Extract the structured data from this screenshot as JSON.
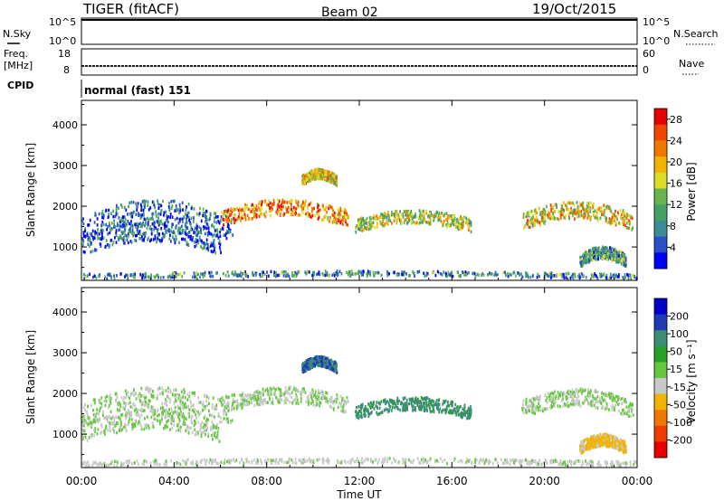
{
  "header": {
    "title": "TIGER (fitACF)",
    "beam": "Beam 02",
    "date": "19/Oct/2015"
  },
  "sky_panel": {
    "left_label": "N.Sky",
    "right_label": "N.Search",
    "left_ticks": [
      "10^5",
      "10^0"
    ],
    "right_ticks": [
      "10^5",
      "10^0"
    ]
  },
  "freq_panel": {
    "left_label_1": "Freq.",
    "left_label_2": "[MHz]",
    "right_label": "Nave",
    "left_ticks": [
      "18",
      "8"
    ],
    "right_ticks": [
      "60",
      "0"
    ]
  },
  "cpid_panel": {
    "label": "CPID",
    "text": "normal (fast) 151"
  },
  "time_axis": {
    "label": "Time UT",
    "ticks": [
      "00:00",
      "04:00",
      "08:00",
      "12:00",
      "16:00",
      "20:00",
      "00:00"
    ]
  },
  "colors": {
    "power": [
      "#0000ff",
      "#2850c8",
      "#3c8c96",
      "#46a064",
      "#64b450",
      "#dcdc28",
      "#f0b400",
      "#f07800",
      "#f04600",
      "#e60000"
    ],
    "velocity": [
      "#e60000",
      "#f03c00",
      "#f07800",
      "#f0b400",
      "#c8c8c8",
      "#64c83c",
      "#28a028",
      "#3c8c78",
      "#1e3cb4",
      "#0000c8"
    ]
  },
  "chart_data": [
    {
      "type": "heatmap",
      "ylabel": "Slant Range [km]",
      "xlabel": "Time UT",
      "x_range_hours": [
        0,
        24
      ],
      "ylim": [
        180,
        4600
      ],
      "yticks": [
        1000,
        2000,
        3000,
        4000
      ],
      "colorbar": {
        "label": "Power [dB]",
        "ticks": [
          "4",
          "8",
          "12",
          "16",
          "20",
          "24",
          "28"
        ],
        "range": [
          0,
          30
        ]
      },
      "echo_regions": [
        {
          "name": "morning-band-upper",
          "t": [
            0.0,
            6.5
          ],
          "r": [
            1150,
            2150
          ],
          "level": 6
        },
        {
          "name": "morning-band-lower",
          "t": [
            0.0,
            6.0
          ],
          "r": [
            800,
            1600
          ],
          "level": 6
        },
        {
          "name": "midday-arc",
          "t": [
            6.0,
            11.5
          ],
          "r": [
            1500,
            2150
          ],
          "level": 22
        },
        {
          "name": "upper-arc",
          "t": [
            9.5,
            11.0
          ],
          "r": [
            2500,
            2900
          ],
          "level": 18
        },
        {
          "name": "noon-patch",
          "t": [
            11.8,
            16.8
          ],
          "r": [
            1350,
            1900
          ],
          "level": 15
        },
        {
          "name": "evening-band",
          "t": [
            19.0,
            23.8
          ],
          "r": [
            1400,
            2100
          ],
          "level": 18
        },
        {
          "name": "late-lower",
          "t": [
            21.5,
            23.5
          ],
          "r": [
            500,
            1000
          ],
          "level": 10
        },
        {
          "name": "ground-near",
          "t": [
            0.0,
            24.0
          ],
          "r": [
            200,
            400
          ],
          "level": 8
        }
      ]
    },
    {
      "type": "heatmap",
      "ylabel": "Slant Range [km]",
      "xlabel": "Time UT",
      "x_range_hours": [
        0,
        24
      ],
      "ylim": [
        180,
        4600
      ],
      "yticks": [
        1000,
        2000,
        3000,
        4000
      ],
      "colorbar": {
        "label": "Velocity [m s⁻¹]",
        "ticks": [
          "200",
          "100",
          "50",
          "15",
          "-15",
          "-50",
          "-100",
          "-200"
        ],
        "range": [
          -250,
          250
        ]
      },
      "echo_regions": [
        {
          "name": "morning-band-upper",
          "t": [
            0.0,
            6.5
          ],
          "r": [
            1150,
            2150
          ],
          "level": 0
        },
        {
          "name": "morning-band-lower",
          "t": [
            0.0,
            6.0
          ],
          "r": [
            800,
            1600
          ],
          "level": 0
        },
        {
          "name": "midday-arc",
          "t": [
            6.0,
            11.5
          ],
          "r": [
            1500,
            2150
          ],
          "level": 0
        },
        {
          "name": "upper-arc",
          "t": [
            9.5,
            11.0
          ],
          "r": [
            2500,
            2900
          ],
          "level": 150
        },
        {
          "name": "noon-patch",
          "t": [
            11.8,
            16.8
          ],
          "r": [
            1350,
            1900
          ],
          "level": 120
        },
        {
          "name": "evening-band",
          "t": [
            19.0,
            23.8
          ],
          "r": [
            1400,
            2100
          ],
          "level": 0
        },
        {
          "name": "late-lower",
          "t": [
            21.5,
            23.5
          ],
          "r": [
            500,
            1000
          ],
          "level": -60
        },
        {
          "name": "ground-near",
          "t": [
            0.0,
            24.0
          ],
          "r": [
            200,
            400
          ],
          "level": -20
        }
      ]
    }
  ]
}
